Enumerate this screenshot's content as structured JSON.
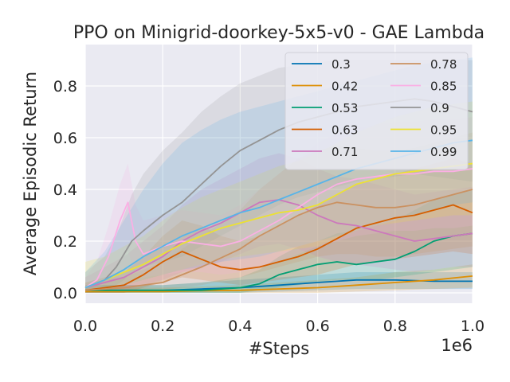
{
  "chart_data": {
    "type": "line",
    "title": "PPO on Minigrid-doorkey-5x5-v0 - GAE Lambda",
    "xlabel": "#Steps",
    "ylabel": "Average Episodic Return",
    "x_multiplier": "1e6",
    "xlim": [
      0.0,
      1.0
    ],
    "ylim": [
      -0.04,
      0.96
    ],
    "xticks": [
      0.0,
      0.2,
      0.4,
      0.6,
      0.8,
      1.0
    ],
    "xtick_labels": [
      "0.0",
      "0.2",
      "0.4",
      "0.6",
      "0.8",
      "1.0"
    ],
    "yticks": [
      0.0,
      0.2,
      0.4,
      0.6,
      0.8
    ],
    "ytick_labels": [
      "0.0",
      "0.2",
      "0.4",
      "0.6",
      "0.8"
    ],
    "grid": true,
    "legend_position": "top-right",
    "legend_columns": 2,
    "series": [
      {
        "name": "0.3",
        "color": "#0173b2",
        "x": [
          0,
          0.05,
          0.1,
          0.2,
          0.3,
          0.4,
          0.5,
          0.6,
          0.7,
          0.8,
          0.9,
          1.0
        ],
        "y": [
          0.01,
          0.01,
          0.01,
          0.01,
          0.015,
          0.02,
          0.03,
          0.04,
          0.05,
          0.05,
          0.045,
          0.045
        ],
        "lower": [
          0,
          0,
          0,
          0,
          0,
          0,
          0.005,
          0.01,
          0.015,
          0.015,
          0.015,
          0.015
        ],
        "upper": [
          0.03,
          0.03,
          0.03,
          0.03,
          0.04,
          0.05,
          0.06,
          0.07,
          0.08,
          0.08,
          0.08,
          0.08
        ]
      },
      {
        "name": "0.42",
        "color": "#de8f05",
        "x": [
          0,
          0.1,
          0.2,
          0.3,
          0.4,
          0.5,
          0.6,
          0.7,
          0.8,
          0.9,
          1.0
        ],
        "y": [
          0.005,
          0.005,
          0.005,
          0.008,
          0.01,
          0.015,
          0.02,
          0.03,
          0.04,
          0.05,
          0.065
        ],
        "lower": [
          0,
          0,
          0,
          0,
          0,
          0,
          0,
          0.005,
          0.01,
          0.015,
          0.02
        ],
        "upper": [
          0.02,
          0.02,
          0.02,
          0.025,
          0.03,
          0.04,
          0.05,
          0.06,
          0.08,
          0.09,
          0.11
        ]
      },
      {
        "name": "0.53",
        "color": "#029e73",
        "x": [
          0,
          0.1,
          0.2,
          0.3,
          0.4,
          0.45,
          0.5,
          0.55,
          0.6,
          0.65,
          0.7,
          0.75,
          0.8,
          0.85,
          0.9,
          0.95,
          1.0
        ],
        "y": [
          0.01,
          0.01,
          0.01,
          0.01,
          0.02,
          0.035,
          0.07,
          0.09,
          0.11,
          0.12,
          0.11,
          0.12,
          0.13,
          0.16,
          0.2,
          0.22,
          0.23
        ],
        "lower": [
          0,
          0,
          0,
          0,
          0,
          0.01,
          0.02,
          0.03,
          0.04,
          0.05,
          0.05,
          0.05,
          0.06,
          0.07,
          0.08,
          0.09,
          0.1
        ],
        "upper": [
          0.03,
          0.03,
          0.03,
          0.04,
          0.06,
          0.09,
          0.14,
          0.18,
          0.2,
          0.23,
          0.24,
          0.26,
          0.28,
          0.32,
          0.36,
          0.38,
          0.4
        ]
      },
      {
        "name": "0.63",
        "color": "#d55e00",
        "x": [
          0,
          0.1,
          0.15,
          0.2,
          0.25,
          0.3,
          0.35,
          0.4,
          0.45,
          0.5,
          0.55,
          0.6,
          0.65,
          0.7,
          0.75,
          0.8,
          0.85,
          0.9,
          0.95,
          1.0
        ],
        "y": [
          0.01,
          0.03,
          0.07,
          0.12,
          0.16,
          0.13,
          0.1,
          0.09,
          0.1,
          0.12,
          0.14,
          0.17,
          0.21,
          0.25,
          0.27,
          0.29,
          0.3,
          0.32,
          0.34,
          0.31
        ],
        "lower": [
          0,
          0,
          0.02,
          0.04,
          0.06,
          0.05,
          0.04,
          0.03,
          0.04,
          0.05,
          0.06,
          0.07,
          0.09,
          0.11,
          0.12,
          0.13,
          0.14,
          0.15,
          0.16,
          0.15
        ],
        "upper": [
          0.04,
          0.08,
          0.14,
          0.22,
          0.28,
          0.26,
          0.22,
          0.2,
          0.22,
          0.26,
          0.3,
          0.34,
          0.38,
          0.42,
          0.44,
          0.46,
          0.48,
          0.5,
          0.52,
          0.5
        ]
      },
      {
        "name": "0.71",
        "color": "#cc78bc",
        "x": [
          0,
          0.1,
          0.15,
          0.2,
          0.25,
          0.3,
          0.35,
          0.4,
          0.45,
          0.5,
          0.55,
          0.6,
          0.65,
          0.7,
          0.75,
          0.8,
          0.85,
          0.9,
          0.95,
          1.0
        ],
        "y": [
          0.02,
          0.06,
          0.1,
          0.14,
          0.2,
          0.24,
          0.27,
          0.31,
          0.35,
          0.36,
          0.34,
          0.3,
          0.27,
          0.26,
          0.24,
          0.22,
          0.2,
          0.21,
          0.22,
          0.23
        ],
        "lower": [
          0,
          0.01,
          0.03,
          0.05,
          0.08,
          0.1,
          0.12,
          0.15,
          0.18,
          0.19,
          0.17,
          0.14,
          0.12,
          0.11,
          0.1,
          0.09,
          0.08,
          0.09,
          0.1,
          0.1
        ],
        "upper": [
          0.06,
          0.14,
          0.2,
          0.26,
          0.34,
          0.4,
          0.44,
          0.48,
          0.52,
          0.54,
          0.52,
          0.48,
          0.45,
          0.44,
          0.42,
          0.4,
          0.38,
          0.39,
          0.4,
          0.41
        ]
      },
      {
        "name": "0.78",
        "color": "#ca9161",
        "x": [
          0,
          0.1,
          0.2,
          0.3,
          0.4,
          0.45,
          0.5,
          0.55,
          0.6,
          0.65,
          0.7,
          0.75,
          0.8,
          0.85,
          0.9,
          0.95,
          1.0
        ],
        "y": [
          0.01,
          0.02,
          0.04,
          0.1,
          0.17,
          0.22,
          0.26,
          0.3,
          0.33,
          0.35,
          0.34,
          0.33,
          0.33,
          0.34,
          0.36,
          0.38,
          0.4
        ],
        "lower": [
          0,
          0,
          0.01,
          0.03,
          0.06,
          0.08,
          0.1,
          0.12,
          0.14,
          0.15,
          0.15,
          0.14,
          0.14,
          0.15,
          0.16,
          0.17,
          0.18
        ],
        "upper": [
          0.04,
          0.06,
          0.12,
          0.22,
          0.32,
          0.4,
          0.46,
          0.52,
          0.55,
          0.57,
          0.56,
          0.55,
          0.55,
          0.56,
          0.58,
          0.6,
          0.62
        ]
      },
      {
        "name": "0.85",
        "color": "#fbafe4",
        "x": [
          0,
          0.03,
          0.06,
          0.09,
          0.11,
          0.13,
          0.15,
          0.2,
          0.25,
          0.3,
          0.35,
          0.4,
          0.45,
          0.5,
          0.55,
          0.6,
          0.65,
          0.7,
          0.75,
          0.8,
          0.85,
          0.9,
          0.95,
          1.0
        ],
        "y": [
          0.02,
          0.05,
          0.14,
          0.28,
          0.35,
          0.2,
          0.15,
          0.18,
          0.2,
          0.19,
          0.18,
          0.2,
          0.24,
          0.28,
          0.33,
          0.38,
          0.42,
          0.44,
          0.45,
          0.46,
          0.46,
          0.47,
          0.47,
          0.48
        ],
        "lower": [
          0,
          0.01,
          0.05,
          0.12,
          0.16,
          0.08,
          0.06,
          0.07,
          0.08,
          0.08,
          0.07,
          0.08,
          0.1,
          0.12,
          0.15,
          0.18,
          0.2,
          0.22,
          0.23,
          0.24,
          0.24,
          0.25,
          0.25,
          0.26
        ],
        "upper": [
          0.06,
          0.12,
          0.26,
          0.42,
          0.5,
          0.34,
          0.28,
          0.3,
          0.32,
          0.31,
          0.3,
          0.34,
          0.4,
          0.46,
          0.52,
          0.58,
          0.62,
          0.64,
          0.65,
          0.66,
          0.66,
          0.67,
          0.67,
          0.68
        ]
      },
      {
        "name": "0.9",
        "color": "#949494",
        "x": [
          0,
          0.05,
          0.08,
          0.1,
          0.12,
          0.15,
          0.2,
          0.25,
          0.3,
          0.35,
          0.4,
          0.45,
          0.5,
          0.55,
          0.6,
          0.65,
          0.7,
          0.75,
          0.8,
          0.85,
          0.9,
          0.95,
          1.0
        ],
        "y": [
          0.02,
          0.05,
          0.1,
          0.15,
          0.2,
          0.24,
          0.3,
          0.35,
          0.42,
          0.49,
          0.55,
          0.59,
          0.63,
          0.66,
          0.68,
          0.7,
          0.72,
          0.73,
          0.74,
          0.75,
          0.74,
          0.72,
          0.7
        ],
        "lower": [
          0,
          0.01,
          0.03,
          0.05,
          0.08,
          0.1,
          0.12,
          0.14,
          0.18,
          0.22,
          0.26,
          0.3,
          0.34,
          0.37,
          0.39,
          0.41,
          0.43,
          0.44,
          0.45,
          0.46,
          0.45,
          0.44,
          0.43
        ],
        "upper": [
          0.08,
          0.14,
          0.22,
          0.3,
          0.38,
          0.46,
          0.55,
          0.62,
          0.7,
          0.76,
          0.81,
          0.84,
          0.87,
          0.88,
          0.89,
          0.9,
          0.9,
          0.9,
          0.9,
          0.9,
          0.9,
          0.9,
          0.9
        ]
      },
      {
        "name": "0.95",
        "color": "#ece133",
        "x": [
          0,
          0.05,
          0.1,
          0.15,
          0.2,
          0.25,
          0.3,
          0.35,
          0.4,
          0.45,
          0.5,
          0.55,
          0.6,
          0.65,
          0.7,
          0.75,
          0.8,
          0.85,
          0.9,
          0.95,
          1.0
        ],
        "y": [
          0.02,
          0.05,
          0.08,
          0.11,
          0.15,
          0.19,
          0.22,
          0.25,
          0.27,
          0.29,
          0.31,
          0.32,
          0.34,
          0.38,
          0.42,
          0.44,
          0.46,
          0.47,
          0.48,
          0.49,
          0.5
        ],
        "lower": [
          0,
          0.01,
          0.03,
          0.05,
          0.07,
          0.09,
          0.11,
          0.13,
          0.14,
          0.15,
          0.16,
          0.17,
          0.18,
          0.21,
          0.24,
          0.26,
          0.27,
          0.28,
          0.29,
          0.3,
          0.3
        ],
        "upper": [
          0.12,
          0.14,
          0.18,
          0.22,
          0.28,
          0.33,
          0.37,
          0.4,
          0.43,
          0.46,
          0.49,
          0.51,
          0.54,
          0.58,
          0.62,
          0.65,
          0.68,
          0.7,
          0.72,
          0.73,
          0.74
        ]
      },
      {
        "name": "0.99",
        "color": "#56b4e9",
        "x": [
          0,
          0.05,
          0.1,
          0.15,
          0.2,
          0.25,
          0.3,
          0.35,
          0.4,
          0.45,
          0.5,
          0.55,
          0.6,
          0.65,
          0.7,
          0.75,
          0.8,
          0.85,
          0.9,
          0.95,
          1.0
        ],
        "y": [
          0.02,
          0.05,
          0.09,
          0.14,
          0.18,
          0.22,
          0.25,
          0.28,
          0.31,
          0.33,
          0.36,
          0.39,
          0.42,
          0.45,
          0.48,
          0.5,
          0.52,
          0.54,
          0.56,
          0.58,
          0.59
        ],
        "lower": [
          0,
          0.01,
          0.03,
          0.05,
          0.07,
          0.09,
          0.1,
          0.12,
          0.13,
          0.14,
          0.16,
          0.18,
          0.2,
          0.22,
          0.24,
          0.26,
          0.28,
          0.3,
          0.32,
          0.34,
          0.35
        ],
        "upper": [
          0.08,
          0.16,
          0.28,
          0.4,
          0.5,
          0.58,
          0.63,
          0.67,
          0.7,
          0.72,
          0.74,
          0.76,
          0.78,
          0.8,
          0.82,
          0.84,
          0.86,
          0.88,
          0.89,
          0.9,
          0.91
        ]
      }
    ]
  }
}
